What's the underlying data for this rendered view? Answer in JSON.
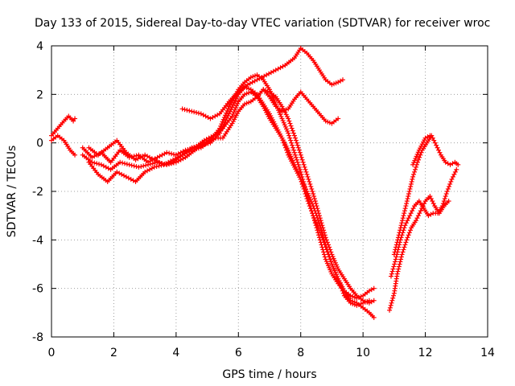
{
  "chart_data": {
    "type": "scatter",
    "title": "Day 133 of 2015, Sidereal Day-to-day VTEC variation (SDTVAR) for receiver wroc",
    "xlabel": "GPS time / hours",
    "ylabel": "SDTVAR / TECUs",
    "xlim": [
      0,
      14
    ],
    "ylim": [
      -8,
      4
    ],
    "xticks": [
      "0",
      "2",
      "4",
      "6",
      "8",
      "10",
      "12",
      "14"
    ],
    "yticks": [
      "4",
      "2",
      "0",
      "-2",
      "-4",
      "-6",
      "-8"
    ],
    "grid": true,
    "color": "#ff0000",
    "marker": "plus",
    "series": [
      {
        "points": [
          [
            0.0,
            0.3
          ],
          [
            0.2,
            0.6
          ],
          [
            0.4,
            0.9
          ],
          [
            0.55,
            1.1
          ],
          [
            0.7,
            0.9
          ],
          [
            0.75,
            1.0
          ]
        ]
      },
      {
        "points": [
          [
            0.0,
            0.1
          ],
          [
            0.2,
            0.3
          ],
          [
            0.4,
            0.1
          ],
          [
            0.6,
            -0.3
          ],
          [
            0.75,
            -0.5
          ]
        ]
      },
      {
        "points": [
          [
            1.0,
            -0.2
          ],
          [
            1.3,
            -0.6
          ],
          [
            1.6,
            -0.4
          ],
          [
            1.9,
            -0.8
          ],
          [
            2.2,
            -0.3
          ],
          [
            2.5,
            -0.6
          ],
          [
            2.8,
            -0.5
          ],
          [
            3.1,
            -0.8
          ],
          [
            3.4,
            -0.6
          ],
          [
            3.7,
            -0.4
          ],
          [
            4.0,
            -0.5
          ],
          [
            4.3,
            -0.3
          ],
          [
            4.6,
            -0.2
          ],
          [
            4.9,
            0.1
          ],
          [
            5.2,
            0.3
          ],
          [
            5.5,
            0.6
          ],
          [
            5.8,
            1.1
          ],
          [
            6.0,
            1.7
          ],
          [
            6.2,
            2.0
          ],
          [
            6.4,
            2.1
          ],
          [
            6.6,
            1.9
          ],
          [
            6.8,
            1.5
          ],
          [
            7.0,
            1.0
          ],
          [
            7.2,
            0.6
          ],
          [
            7.4,
            0.2
          ],
          [
            7.6,
            -0.5
          ],
          [
            7.8,
            -1.0
          ],
          [
            8.0,
            -1.5
          ],
          [
            8.2,
            -2.3
          ],
          [
            8.4,
            -3.0
          ],
          [
            8.6,
            -3.9
          ],
          [
            8.8,
            -4.8
          ],
          [
            9.0,
            -5.4
          ],
          [
            9.2,
            -5.8
          ],
          [
            9.4,
            -6.1
          ],
          [
            9.6,
            -6.3
          ],
          [
            9.8,
            -6.4
          ],
          [
            10.0,
            -6.3
          ],
          [
            10.2,
            -6.1
          ],
          [
            10.35,
            -6.0
          ]
        ]
      },
      {
        "points": [
          [
            1.0,
            -0.5
          ],
          [
            1.3,
            -0.8
          ],
          [
            1.6,
            -0.9
          ],
          [
            1.9,
            -1.1
          ],
          [
            2.2,
            -0.8
          ],
          [
            2.5,
            -0.9
          ],
          [
            2.8,
            -1.0
          ],
          [
            3.1,
            -0.9
          ],
          [
            3.4,
            -0.8
          ],
          [
            3.7,
            -0.9
          ],
          [
            4.0,
            -0.8
          ],
          [
            4.3,
            -0.6
          ],
          [
            4.6,
            -0.3
          ],
          [
            4.9,
            0.0
          ],
          [
            5.2,
            0.2
          ],
          [
            5.5,
            0.2
          ],
          [
            5.8,
            0.8
          ],
          [
            6.0,
            1.3
          ],
          [
            6.2,
            1.6
          ],
          [
            6.4,
            1.7
          ],
          [
            6.6,
            1.9
          ],
          [
            6.8,
            2.2
          ],
          [
            7.0,
            2.1
          ],
          [
            7.2,
            1.9
          ],
          [
            7.4,
            1.5
          ],
          [
            7.6,
            1.0
          ],
          [
            7.8,
            0.3
          ],
          [
            8.0,
            -0.5
          ],
          [
            8.2,
            -1.3
          ],
          [
            8.4,
            -2.1
          ],
          [
            8.6,
            -3.0
          ],
          [
            8.8,
            -3.9
          ],
          [
            9.0,
            -4.6
          ],
          [
            9.2,
            -5.2
          ],
          [
            9.4,
            -5.6
          ],
          [
            9.6,
            -6.0
          ],
          [
            9.8,
            -6.3
          ],
          [
            10.0,
            -6.5
          ],
          [
            10.2,
            -6.6
          ],
          [
            10.35,
            -6.5
          ]
        ]
      },
      {
        "points": [
          [
            1.2,
            -0.8
          ],
          [
            1.5,
            -1.3
          ],
          [
            1.8,
            -1.6
          ],
          [
            2.1,
            -1.2
          ],
          [
            2.4,
            -1.4
          ],
          [
            2.7,
            -1.6
          ],
          [
            3.0,
            -1.2
          ],
          [
            3.3,
            -1.0
          ],
          [
            3.6,
            -0.9
          ],
          [
            3.9,
            -0.7
          ],
          [
            4.2,
            -0.5
          ],
          [
            4.5,
            -0.2
          ],
          [
            4.8,
            -0.1
          ],
          [
            5.1,
            0.0
          ],
          [
            5.4,
            0.4
          ],
          [
            5.7,
            1.2
          ],
          [
            6.0,
            2.0
          ],
          [
            6.2,
            2.3
          ],
          [
            6.4,
            2.2
          ],
          [
            6.6,
            2.0
          ],
          [
            6.8,
            1.6
          ],
          [
            7.0,
            1.2
          ],
          [
            7.2,
            0.7
          ],
          [
            7.4,
            0.2
          ],
          [
            7.6,
            -0.3
          ],
          [
            7.8,
            -0.9
          ],
          [
            8.0,
            -1.5
          ],
          [
            8.2,
            -2.0
          ],
          [
            8.4,
            -2.6
          ],
          [
            8.6,
            -3.3
          ],
          [
            8.8,
            -4.2
          ],
          [
            9.0,
            -5.0
          ],
          [
            9.2,
            -5.6
          ],
          [
            9.4,
            -6.1
          ],
          [
            9.6,
            -6.5
          ],
          [
            9.8,
            -6.6
          ],
          [
            10.0,
            -6.8
          ],
          [
            10.2,
            -7.0
          ],
          [
            10.35,
            -7.2
          ]
        ]
      },
      {
        "points": [
          [
            1.2,
            -0.2
          ],
          [
            1.5,
            -0.5
          ],
          [
            1.8,
            -0.2
          ],
          [
            2.1,
            0.1
          ],
          [
            2.4,
            -0.4
          ],
          [
            2.7,
            -0.7
          ],
          [
            3.0,
            -0.5
          ],
          [
            3.3,
            -0.7
          ],
          [
            3.6,
            -0.9
          ],
          [
            3.9,
            -0.8
          ],
          [
            4.2,
            -0.5
          ],
          [
            4.5,
            -0.3
          ],
          [
            4.8,
            -0.2
          ],
          [
            5.1,
            0.1
          ],
          [
            5.4,
            0.6
          ],
          [
            5.7,
            1.5
          ],
          [
            6.0,
            2.2
          ],
          [
            6.2,
            2.5
          ],
          [
            6.4,
            2.7
          ],
          [
            6.6,
            2.8
          ],
          [
            6.8,
            2.6
          ],
          [
            7.0,
            2.2
          ],
          [
            7.2,
            1.6
          ],
          [
            7.4,
            1.0
          ],
          [
            7.6,
            0.4
          ],
          [
            7.8,
            -0.4
          ],
          [
            8.0,
            -1.2
          ],
          [
            8.2,
            -2.1
          ],
          [
            8.4,
            -3.0
          ],
          [
            8.6,
            -3.6
          ],
          [
            8.8,
            -4.3
          ],
          [
            9.0,
            -5.0
          ],
          [
            9.2,
            -5.6
          ],
          [
            9.4,
            -6.3
          ],
          [
            9.6,
            -6.6
          ],
          [
            9.8,
            -6.7
          ],
          [
            10.0,
            -6.6
          ],
          [
            10.2,
            -6.5
          ]
        ]
      },
      {
        "points": [
          [
            4.2,
            1.4
          ],
          [
            4.5,
            1.3
          ],
          [
            4.8,
            1.2
          ],
          [
            5.1,
            1.0
          ],
          [
            5.4,
            1.2
          ],
          [
            5.7,
            1.7
          ],
          [
            6.0,
            2.1
          ],
          [
            6.3,
            2.4
          ],
          [
            6.6,
            2.6
          ],
          [
            6.9,
            2.8
          ],
          [
            7.2,
            3.0
          ],
          [
            7.5,
            3.2
          ],
          [
            7.8,
            3.5
          ],
          [
            8.0,
            3.9
          ],
          [
            8.2,
            3.7
          ],
          [
            8.4,
            3.4
          ],
          [
            8.6,
            3.0
          ],
          [
            8.8,
            2.6
          ],
          [
            9.0,
            2.4
          ],
          [
            9.2,
            2.5
          ],
          [
            9.35,
            2.6
          ]
        ]
      },
      {
        "points": [
          [
            6.8,
            2.2
          ],
          [
            7.0,
            1.9
          ],
          [
            7.2,
            1.5
          ],
          [
            7.4,
            1.3
          ],
          [
            7.6,
            1.4
          ],
          [
            7.8,
            1.8
          ],
          [
            8.0,
            2.1
          ],
          [
            8.2,
            1.8
          ],
          [
            8.4,
            1.5
          ],
          [
            8.6,
            1.2
          ],
          [
            8.8,
            0.9
          ],
          [
            9.0,
            0.8
          ],
          [
            9.2,
            1.0
          ]
        ]
      },
      {
        "points": [
          [
            10.85,
            -6.9
          ],
          [
            11.0,
            -6.2
          ],
          [
            11.1,
            -5.4
          ],
          [
            11.25,
            -4.6
          ],
          [
            11.4,
            -4.0
          ],
          [
            11.55,
            -3.5
          ],
          [
            11.7,
            -3.2
          ],
          [
            11.85,
            -2.8
          ],
          [
            12.0,
            -2.4
          ],
          [
            12.15,
            -2.2
          ],
          [
            12.3,
            -2.6
          ],
          [
            12.45,
            -2.9
          ],
          [
            12.6,
            -2.6
          ],
          [
            12.75,
            -2.4
          ]
        ]
      },
      {
        "points": [
          [
            10.9,
            -5.5
          ],
          [
            11.05,
            -4.8
          ],
          [
            11.2,
            -4.0
          ],
          [
            11.35,
            -3.4
          ],
          [
            11.5,
            -3.0
          ],
          [
            11.65,
            -2.6
          ],
          [
            11.8,
            -2.4
          ],
          [
            11.95,
            -2.7
          ],
          [
            12.1,
            -3.0
          ],
          [
            12.25,
            -2.9
          ],
          [
            12.4,
            -2.9
          ],
          [
            12.55,
            -2.6
          ],
          [
            12.7,
            -2.0
          ],
          [
            12.85,
            -1.5
          ],
          [
            13.0,
            -1.1
          ]
        ]
      },
      {
        "points": [
          [
            11.0,
            -4.6
          ],
          [
            11.15,
            -3.8
          ],
          [
            11.3,
            -3.0
          ],
          [
            11.45,
            -2.2
          ],
          [
            11.6,
            -1.4
          ],
          [
            11.75,
            -0.8
          ],
          [
            11.9,
            -0.3
          ],
          [
            12.05,
            0.0
          ],
          [
            12.2,
            0.3
          ],
          [
            12.35,
            -0.1
          ],
          [
            12.5,
            -0.5
          ],
          [
            12.65,
            -0.8
          ],
          [
            12.8,
            -0.9
          ],
          [
            12.95,
            -0.8
          ],
          [
            13.05,
            -0.9
          ]
        ]
      },
      {
        "points": [
          [
            11.6,
            -0.9
          ],
          [
            11.8,
            -0.3
          ],
          [
            12.0,
            0.2
          ],
          [
            12.15,
            0.3
          ]
        ]
      }
    ]
  }
}
